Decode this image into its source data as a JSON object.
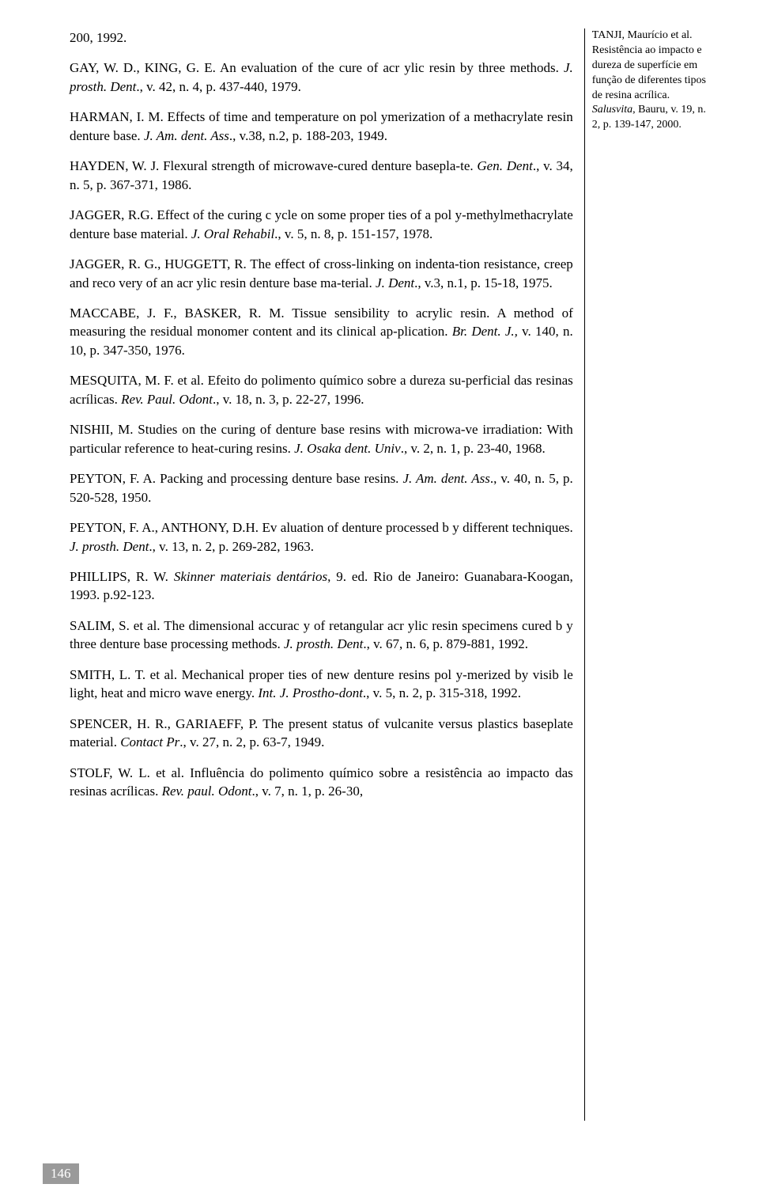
{
  "refs": [
    {
      "prefix": "200, 1992.",
      "rest": ""
    },
    {
      "prefix": "GAY, W. D., KING, G. E. An evaluation of the cure of acr ylic resin by three methods. ",
      "ital": "J. prosth. Dent",
      "rest": "., v. 42, n. 4, p. 437-440, 1979."
    },
    {
      "prefix": "HARMAN, I. M. Effects of time and temperature on pol ymerization of a methacrylate resin denture base. ",
      "ital": "J. Am. dent. Ass",
      "rest": "., v.38, n.2, p. 188-203, 1949."
    },
    {
      "prefix": "HAYDEN, W. J. Flexural strength of microwave-cured denture basepla-te. ",
      "ital": "Gen. Dent",
      "rest": "., v. 34, n. 5, p. 367-371, 1986."
    },
    {
      "prefix": "JAGGER, R.G. Effect of the curing c ycle on some proper ties of a pol y-methylmethacrylate denture base material. ",
      "ital": "J. Oral Rehabil",
      "rest": "., v. 5, n. 8, p. 151-157, 1978."
    },
    {
      "prefix": "JAGGER, R. G., HUGGETT, R. The effect of cross-linking on indenta-tion resistance, creep and reco very of an acr ylic resin denture base ma-terial. ",
      "ital": "J. Dent",
      "rest": "., v.3, n.1, p. 15-18, 1975."
    },
    {
      "prefix": "MACCABE, J. F., BASKER, R. M. Tissue sensibility to acrylic resin. A method of measuring the residual monomer content and its clinical ap-plication. ",
      "ital": "Br. Dent. J.,",
      "rest": " v. 140, n. 10, p. 347-350, 1976."
    },
    {
      "prefix": "MESQUITA, M. F. et al. Efeito do polimento químico sobre a dureza su-perficial das resinas acrílicas. ",
      "ital": "Rev. Paul. Odont",
      "rest": "., v. 18, n. 3, p. 22-27, 1996."
    },
    {
      "prefix": "NISHII, M. Studies on the curing of denture base resins with microwa-ve irradiation: With particular reference to heat-curing resins. ",
      "ital": "J. Osaka dent. Univ",
      "rest": "., v. 2, n. 1, p. 23-40, 1968."
    },
    {
      "prefix": "PEYTON, F. A. Packing and processing denture base resins. ",
      "ital": "J. Am. dent. Ass",
      "rest": "., v. 40, n. 5, p. 520-528, 1950."
    },
    {
      "prefix": "PEYTON, F. A., ANTHONY, D.H. Ev aluation of denture processed b y different techniques. ",
      "ital": "J. prosth. Dent",
      "rest": "., v. 13, n. 2, p. 269-282, 1963."
    },
    {
      "prefix": "PHILLIPS, R. W. ",
      "ital": "Skinner materiais dentários",
      "rest": ", 9. ed. Rio de Janeiro: Guanabara-Koogan, 1993. p.92-123."
    },
    {
      "prefix": "SALIM, S. et al. The dimensional accurac y of retangular acr ylic resin specimens cured b y three denture base processing methods. ",
      "ital": "J. prosth. Dent",
      "rest": "., v. 67, n. 6, p. 879-881, 1992."
    },
    {
      "prefix": "SMITH, L. T. et al. Mechanical proper ties of new denture resins pol y-merized by visib le light, heat and micro wave energy. ",
      "ital": "Int. J. Prostho-dont",
      "rest": "., v. 5, n. 2, p. 315-318, 1992."
    },
    {
      "prefix": "SPENCER, H. R., GARIAEFF, P. The present status of vulcanite versus plastics baseplate material. ",
      "ital": "Contact Pr",
      "rest": "., v. 27, n. 2, p. 63-7, 1949."
    },
    {
      "prefix": "STOLF, W. L. et al. Influência do polimento químico sobre a resistência ao impacto das resinas acrílicas. ",
      "ital": "Rev. paul. Odont",
      "rest": "., v. 7, n. 1, p. 26-30,"
    }
  ],
  "side": {
    "a": "TANJI, Maurício et al. Resistência ao impacto e dureza de superfície em função de diferentes tipos de resina acrílica. ",
    "ital": "Salusvita",
    "b": ", Bauru, v. 19, n. 2, p. 139-147, 2000."
  },
  "page": "146"
}
